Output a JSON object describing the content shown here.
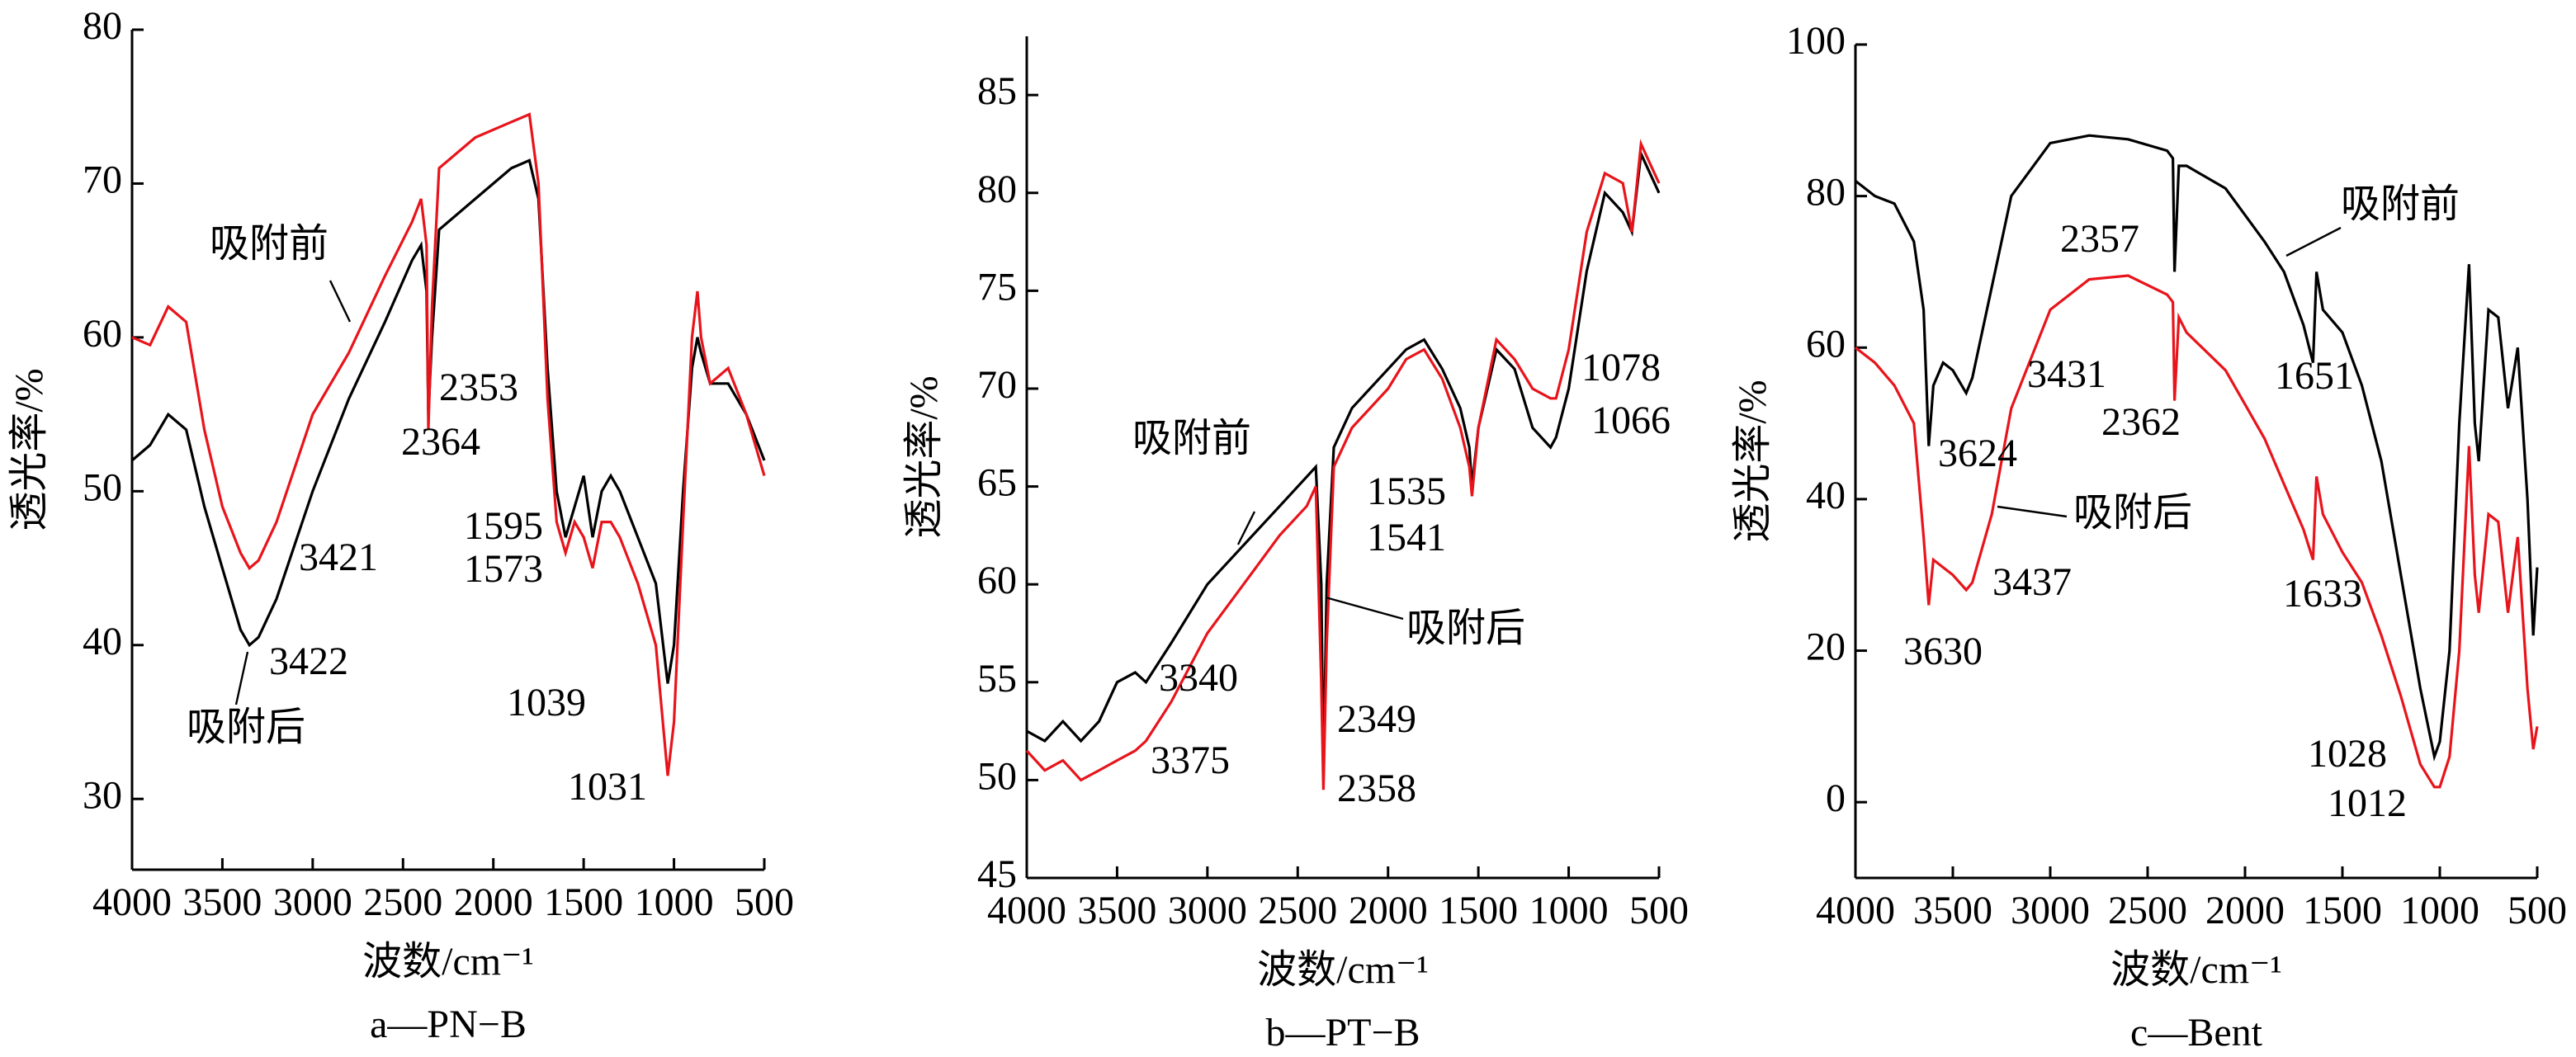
{
  "chart_data": [
    {
      "type": "line",
      "caption": "a—PN−B",
      "xlabel": "波数/cm⁻¹",
      "ylabel": "透光率/%",
      "xlim": [
        4000,
        500
      ],
      "xticks": [
        4000,
        3500,
        3000,
        2500,
        2000,
        1500,
        1000,
        500
      ],
      "ylim": [
        25.4,
        80
      ],
      "yticks": [
        30,
        40,
        50,
        60,
        70,
        80
      ],
      "x": [
        4000,
        3900,
        3800,
        3700,
        3600,
        3500,
        3400,
        3350,
        3300,
        3200,
        3000,
        2800,
        2600,
        2450,
        2400,
        2370,
        2360,
        2340,
        2300,
        2100,
        1900,
        1800,
        1750,
        1700,
        1650,
        1600,
        1550,
        1500,
        1450,
        1400,
        1350,
        1300,
        1200,
        1100,
        1035,
        1000,
        950,
        900,
        870,
        850,
        800,
        700,
        600,
        500
      ],
      "series": [
        {
          "name": "吸附后",
          "color": "#000000",
          "values": [
            52,
            53,
            55,
            54,
            49,
            45,
            41,
            40,
            40.5,
            43,
            50,
            56,
            61,
            65,
            66,
            63,
            55,
            60,
            67,
            69,
            71,
            71.5,
            69,
            58,
            50,
            47,
            49,
            51,
            47,
            50,
            51,
            50,
            47,
            44,
            37.5,
            40,
            50,
            58,
            60,
            59,
            57,
            57,
            55,
            52
          ]
        },
        {
          "name": "吸附前",
          "color": "#e8141b",
          "values": [
            60,
            59.5,
            62,
            61,
            54,
            49,
            46,
            45,
            45.5,
            48,
            55,
            59,
            64,
            67.5,
            69,
            66,
            54,
            62,
            71,
            73,
            74,
            74.5,
            70,
            56,
            48,
            46,
            48,
            47,
            45,
            48,
            48,
            47,
            44,
            40,
            31.5,
            35,
            48,
            60,
            63,
            60,
            57,
            58,
            55,
            51
          ]
        }
      ],
      "annotations": [
        "2353",
        "2364",
        "3421",
        "3422",
        "1595",
        "1573",
        "1039",
        "1031"
      ]
    },
    {
      "type": "line",
      "caption": "b—PT−B",
      "xlabel": "波数/cm⁻¹",
      "ylabel": "透光率/%",
      "xlim": [
        4000,
        500
      ],
      "xticks": [
        4000,
        3500,
        3000,
        2500,
        2000,
        1500,
        1000,
        500
      ],
      "ylim": [
        45,
        88
      ],
      "yticks": [
        45,
        50,
        55,
        60,
        65,
        70,
        75,
        80,
        85
      ],
      "x": [
        4000,
        3900,
        3800,
        3700,
        3600,
        3500,
        3400,
        3340,
        3200,
        3000,
        2800,
        2600,
        2450,
        2400,
        2370,
        2358,
        2340,
        2300,
        2200,
        2000,
        1900,
        1800,
        1700,
        1600,
        1550,
        1535,
        1500,
        1400,
        1300,
        1200,
        1100,
        1070,
        1000,
        900,
        800,
        700,
        650,
        600,
        500
      ],
      "series": [
        {
          "name": "吸附前",
          "color": "#000000",
          "values": [
            52.5,
            52,
            53,
            52,
            53,
            55,
            55.5,
            55,
            57,
            60,
            62,
            64,
            65.5,
            66,
            60,
            50,
            60,
            67,
            69,
            71,
            72,
            72.5,
            71,
            69,
            67,
            65,
            68,
            72,
            71,
            68,
            67,
            67.5,
            70,
            76,
            80,
            79,
            78,
            82,
            80
          ]
        },
        {
          "name": "吸附后",
          "color": "#e8141b",
          "values": [
            51.5,
            50.5,
            51,
            50,
            50.5,
            51,
            51.5,
            52,
            54,
            57.5,
            60,
            62.5,
            64,
            65,
            55,
            49.5,
            57,
            66,
            68,
            70,
            71.5,
            72,
            70.5,
            68,
            66,
            64.5,
            68,
            72.5,
            71.5,
            70,
            69.5,
            69.5,
            72,
            78,
            81,
            80.5,
            78,
            82.5,
            80.5
          ]
        }
      ],
      "annotations": [
        "3340",
        "3375",
        "2349",
        "2358",
        "1535",
        "1541",
        "1078",
        "1066"
      ]
    },
    {
      "type": "line",
      "caption": "c—Bent",
      "xlabel": "波数/cm⁻¹",
      "ylabel": "透光率/%",
      "xlim": [
        4000,
        500
      ],
      "xticks": [
        4000,
        3500,
        3000,
        2500,
        2000,
        1500,
        1000,
        500
      ],
      "ylim": [
        -10,
        100
      ],
      "yticks": [
        0,
        20,
        40,
        60,
        80,
        100
      ],
      "x": [
        4000,
        3900,
        3800,
        3700,
        3650,
        3624,
        3600,
        3550,
        3500,
        3431,
        3400,
        3300,
        3200,
        3000,
        2800,
        2600,
        2400,
        2370,
        2362,
        2340,
        2300,
        2100,
        1900,
        1800,
        1700,
        1651,
        1633,
        1600,
        1500,
        1400,
        1300,
        1200,
        1100,
        1028,
        1000,
        950,
        900,
        850,
        820,
        800,
        750,
        700,
        650,
        600,
        550,
        520,
        500
      ],
      "series": [
        {
          "name": "吸附前",
          "color": "#000000",
          "values": [
            82,
            80,
            79,
            74,
            65,
            47,
            55,
            58,
            57,
            54,
            56,
            68,
            80,
            87,
            88,
            87.5,
            86,
            85,
            70,
            84,
            84,
            81,
            74,
            70,
            63,
            58,
            70,
            65,
            62,
            55,
            45,
            30,
            15,
            6,
            8,
            20,
            50,
            71,
            50,
            45,
            65,
            64,
            52,
            60,
            40,
            22,
            31
          ]
        },
        {
          "name": "吸附后",
          "color": "#e8141b",
          "values": [
            60,
            58,
            55,
            50,
            35,
            26,
            32,
            31,
            30,
            28,
            29,
            38,
            52,
            65,
            69,
            69.5,
            67,
            66,
            53,
            64,
            62,
            57,
            48,
            42,
            36,
            32,
            43,
            38,
            33,
            29,
            22,
            14,
            5,
            2,
            2,
            6,
            20,
            47,
            30,
            25,
            38,
            37,
            25,
            35,
            15,
            7,
            10
          ]
        }
      ],
      "annotations": [
        "3431",
        "3624",
        "2357",
        "2362",
        "1651",
        "1633",
        "1028",
        "1012",
        "3630",
        "3437"
      ]
    }
  ]
}
